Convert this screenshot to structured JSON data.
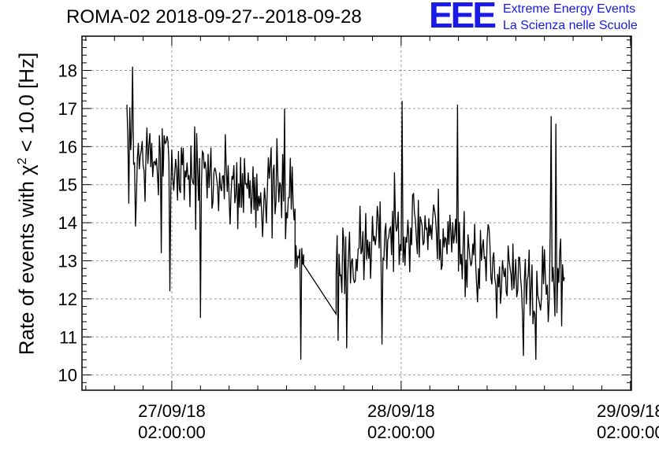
{
  "header": {
    "title": "ROMA-02 2018-09-27--2018-09-28",
    "logo_mark": "EEE",
    "logo_line1": "Extreme Energy Events",
    "logo_line2": "La Scienza nelle Scuole",
    "logo_color": "#1a1ae6"
  },
  "chart_data": {
    "type": "line",
    "title": "ROMA-02 2018-09-27--2018-09-28",
    "ylabel_prefix": "Rate of events with χ",
    "ylabel_sup": "2",
    "ylabel_suffix": " < 10.0 [Hz]",
    "ylim": [
      9.6,
      18.9
    ],
    "yticks": [
      10,
      11,
      12,
      13,
      14,
      15,
      16,
      17,
      18
    ],
    "x_unit": "hours since 2018-09-26 00:00",
    "xlim": [
      16.6,
      74.1
    ],
    "xticks": [
      {
        "x": 26,
        "line1": "27/09/18",
        "line2": "02:00:00"
      },
      {
        "x": 50,
        "line1": "28/09/18",
        "line2": "02:00:00"
      },
      {
        "x": 74,
        "line1": "29/09/18",
        "line2": "02:00:00"
      }
    ],
    "grid": true,
    "line_color": "#000000",
    "series": [
      {
        "segments": [
          {
            "x_start": 21.3,
            "x_end": 38.9,
            "mean_start": 15.8,
            "mean_end": 14.6,
            "spread": 1.1,
            "seed": 7
          },
          {
            "x_start": 38.9,
            "x_end": 39.8,
            "mean_start": 13.3,
            "mean_end": 13.3,
            "spread": 0.7,
            "seed": 11
          }
        ],
        "gap_line": {
          "x_start": 39.8,
          "x_end": 43.2,
          "y_start": 12.9,
          "y_end": 11.6
        },
        "segments_after": [
          {
            "x_start": 43.2,
            "x_end": 67.1,
            "mean_start": 12.9,
            "mean_end": 12.6,
            "spread": 1.0,
            "seed": 23,
            "hump_center": 52,
            "hump_height": 1.1,
            "hump_width": 6
          }
        ],
        "extremes": [
          {
            "x": 21.3,
            "y": 17.1
          },
          {
            "x": 21.9,
            "y": 18.1
          },
          {
            "x": 22.2,
            "y": 13.9
          },
          {
            "x": 24.9,
            "y": 13.2
          },
          {
            "x": 25.8,
            "y": 12.2
          },
          {
            "x": 29.0,
            "y": 11.5
          },
          {
            "x": 37.8,
            "y": 17.0
          },
          {
            "x": 39.5,
            "y": 10.4
          },
          {
            "x": 43.4,
            "y": 10.9
          },
          {
            "x": 44.3,
            "y": 10.7
          },
          {
            "x": 48.0,
            "y": 10.8
          },
          {
            "x": 50.1,
            "y": 17.2
          },
          {
            "x": 55.9,
            "y": 17.1
          },
          {
            "x": 62.8,
            "y": 10.5
          },
          {
            "x": 64.1,
            "y": 10.4
          },
          {
            "x": 65.7,
            "y": 16.8
          },
          {
            "x": 66.2,
            "y": 16.6
          }
        ]
      }
    ]
  }
}
